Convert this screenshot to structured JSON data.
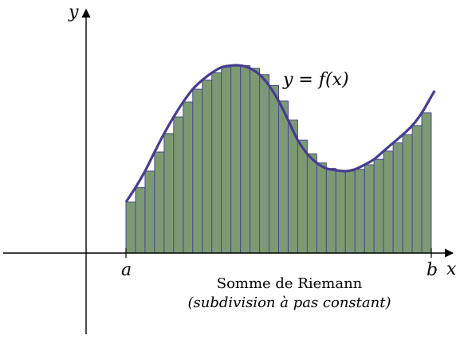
{
  "chart_data": {
    "type": "area",
    "description_labels": {
      "x_axis": "x",
      "y_axis": "y",
      "curve_label": "y = f(x)",
      "left_bound": "a",
      "right_bound": "b",
      "caption_line1": "Somme de Riemann",
      "caption_line2": "(subdivision à pas constant)"
    },
    "curve": {
      "x": [
        0,
        1,
        2,
        3,
        4,
        5,
        6,
        7,
        8,
        9,
        10,
        11,
        12,
        13,
        14,
        15,
        16,
        17,
        18,
        19,
        20,
        21,
        22,
        23,
        24,
        25,
        26,
        27,
        28,
        29,
        30,
        31,
        32
      ],
      "y": [
        2.24,
        2.88,
        3.6,
        4.44,
        5.25,
        5.98,
        6.64,
        7.2,
        7.6,
        7.92,
        8.16,
        8.24,
        8.24,
        8.12,
        7.84,
        7.36,
        6.68,
        5.84,
        4.96,
        4.36,
        3.96,
        3.72,
        3.64,
        3.6,
        3.68,
        3.88,
        4.12,
        4.48,
        4.84,
        5.2,
        5.6,
        6.16,
        6.88
      ]
    },
    "rectangles": {
      "count": 32,
      "left_endpoint_rule": true
    },
    "colors": {
      "fill": "#7b9a73",
      "stroke": "#4a4a8c",
      "curve": "#463d8f",
      "axes": "#000000"
    }
  }
}
